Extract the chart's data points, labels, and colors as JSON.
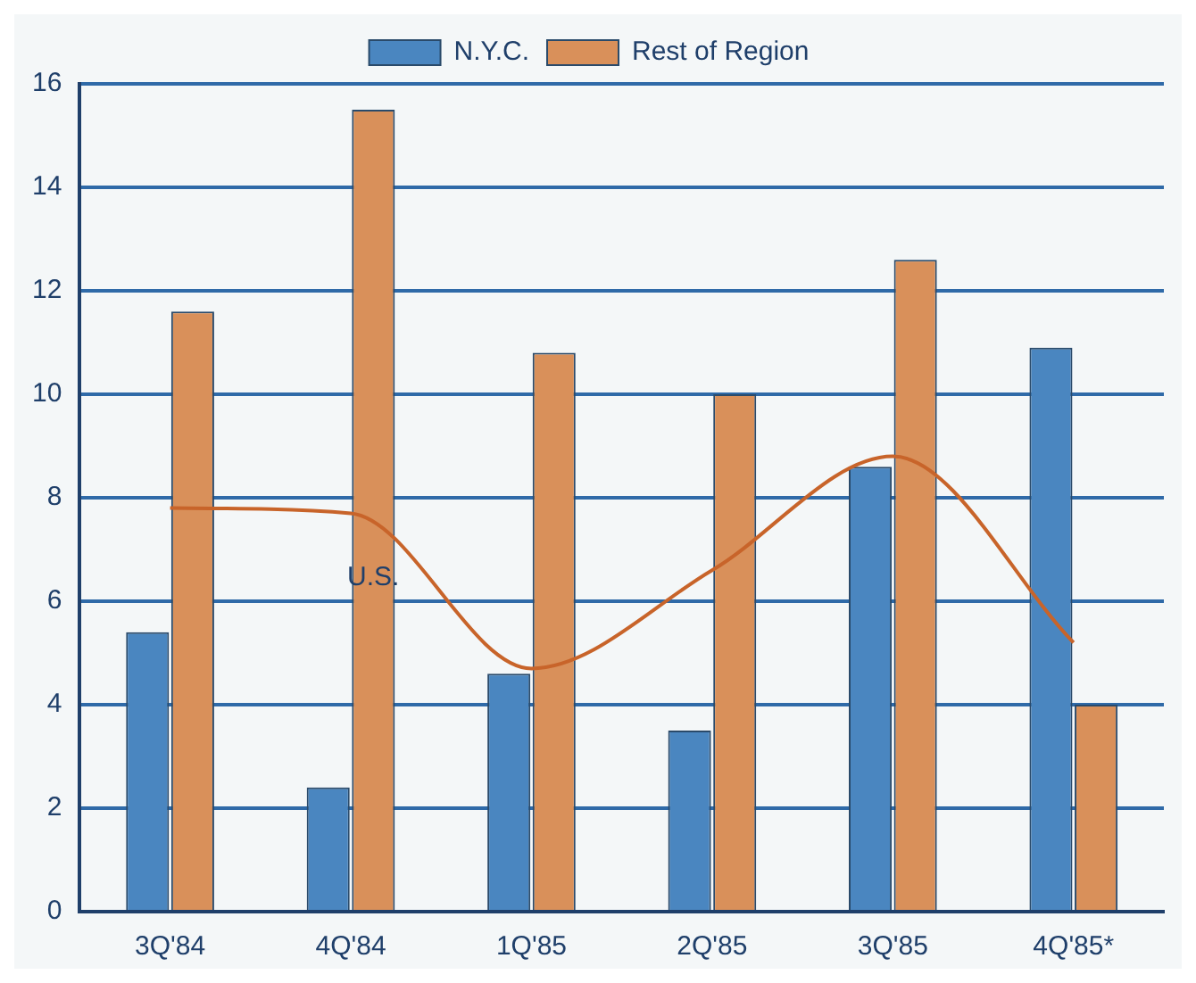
{
  "chart_data": {
    "type": "bar",
    "categories": [
      "3Q'84",
      "4Q'84",
      "1Q'85",
      "2Q'85",
      "3Q'85",
      "4Q'85*"
    ],
    "series": [
      {
        "name": "N.Y.C.",
        "color": "#4a86c0",
        "values": [
          5.4,
          2.4,
          4.6,
          3.5,
          8.6,
          10.9
        ]
      },
      {
        "name": "Rest of Region",
        "color": "#d9905a",
        "values": [
          11.6,
          15.5,
          10.8,
          10.0,
          12.6,
          4.0
        ]
      },
      {
        "name": "U.S.",
        "type": "line",
        "color": "#c8642a",
        "values": [
          7.8,
          7.7,
          4.7,
          6.6,
          8.8,
          5.2
        ]
      }
    ],
    "ylim": [
      0,
      16
    ],
    "yticks": [
      0,
      2,
      4,
      6,
      8,
      10,
      12,
      14,
      16
    ],
    "grid": "y",
    "legend": "top",
    "marker": "none"
  }
}
